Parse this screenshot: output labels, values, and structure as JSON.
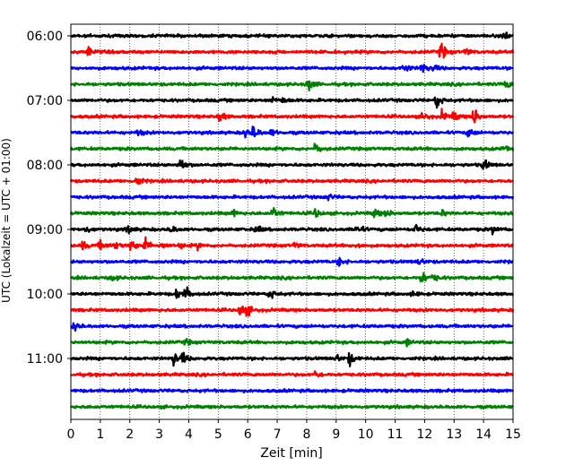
{
  "chart_data": {
    "type": "line",
    "title": "",
    "xlabel": "Zeit  [min]",
    "ylabel": "UTC (Lokalzeit = UTC + 01:00)",
    "xlim": [
      0,
      15
    ],
    "x_ticks": [
      "0",
      "1",
      "2",
      "3",
      "4",
      "5",
      "6",
      "7",
      "8",
      "9",
      "10",
      "11",
      "12",
      "13",
      "14",
      "15"
    ],
    "y_tick_labels": [
      "06:00",
      "07:00",
      "08:00",
      "09:00",
      "10:00",
      "11:00"
    ],
    "grid": "vertical dotted lines at each minute",
    "colors": [
      "#000000",
      "#ff0000",
      "#0000ff",
      "#008000"
    ],
    "traces": [
      {
        "start": "06:00",
        "color": "#000000",
        "events": [
          [
            14.7,
            0.6
          ]
        ]
      },
      {
        "start": "06:15",
        "color": "#ff0000",
        "events": [
          [
            0.6,
            0.5
          ],
          [
            12.55,
            1.0
          ],
          [
            13.4,
            0.4
          ]
        ]
      },
      {
        "start": "06:30",
        "color": "#0000ff",
        "events": [
          [
            11.3,
            0.5
          ],
          [
            11.9,
            0.6
          ],
          [
            12.3,
            0.4
          ]
        ]
      },
      {
        "start": "06:45",
        "color": "#008000",
        "events": [
          [
            8.05,
            0.8
          ],
          [
            14.75,
            0.5
          ]
        ]
      },
      {
        "start": "07:00",
        "color": "#000000",
        "events": [
          [
            6.8,
            0.4
          ],
          [
            7.2,
            0.3
          ],
          [
            12.4,
            0.9
          ]
        ]
      },
      {
        "start": "07:15",
        "color": "#ff0000",
        "events": [
          [
            5.05,
            0.6
          ],
          [
            11.95,
            0.5
          ],
          [
            12.6,
            0.6
          ],
          [
            13.0,
            0.5
          ],
          [
            13.65,
            1.1
          ]
        ]
      },
      {
        "start": "07:30",
        "color": "#0000ff",
        "events": [
          [
            2.3,
            0.3
          ],
          [
            5.9,
            0.5
          ],
          [
            6.2,
            0.7
          ],
          [
            6.8,
            0.4
          ],
          [
            13.5,
            0.6
          ]
        ]
      },
      {
        "start": "07:45",
        "color": "#008000",
        "events": [
          [
            8.3,
            0.6
          ],
          [
            14.7,
            0.3
          ]
        ]
      },
      {
        "start": "08:00",
        "color": "#000000",
        "events": [
          [
            3.7,
            0.9
          ],
          [
            14.0,
            0.7
          ]
        ]
      },
      {
        "start": "08:15",
        "color": "#ff0000",
        "events": [
          [
            2.2,
            0.7
          ]
        ]
      },
      {
        "start": "08:30",
        "color": "#0000ff",
        "events": [
          [
            8.7,
            0.4
          ]
        ]
      },
      {
        "start": "08:45",
        "color": "#008000",
        "events": [
          [
            5.5,
            0.4
          ],
          [
            6.85,
            0.8
          ],
          [
            8.3,
            0.5
          ],
          [
            10.3,
            0.5
          ],
          [
            10.7,
            0.4
          ],
          [
            12.6,
            0.3
          ]
        ]
      },
      {
        "start": "09:00",
        "color": "#000000",
        "events": [
          [
            0.5,
            0.4
          ],
          [
            1.95,
            0.5
          ],
          [
            3.4,
            0.4
          ],
          [
            6.3,
            0.4
          ],
          [
            9.7,
            0.6
          ],
          [
            11.7,
            0.5
          ],
          [
            14.3,
            0.4
          ]
        ]
      },
      {
        "start": "09:15",
        "color": "#ff0000",
        "events": [
          [
            0.4,
            0.4
          ],
          [
            1.0,
            0.6
          ],
          [
            1.5,
            0.4
          ],
          [
            2.0,
            0.7
          ],
          [
            2.5,
            0.8
          ],
          [
            3.1,
            0.4
          ],
          [
            3.7,
            0.3
          ],
          [
            4.3,
            0.3
          ],
          [
            7.6,
            0.3
          ],
          [
            9.7,
            0.3
          ]
        ]
      },
      {
        "start": "09:30",
        "color": "#0000ff",
        "events": [
          [
            9.1,
            0.5
          ],
          [
            11.8,
            0.4
          ]
        ]
      },
      {
        "start": "09:45",
        "color": "#008000",
        "events": [
          [
            1.4,
            0.3
          ],
          [
            11.9,
            0.8
          ],
          [
            12.3,
            0.4
          ]
        ]
      },
      {
        "start": "10:00",
        "color": "#000000",
        "events": [
          [
            3.6,
            0.6
          ],
          [
            3.9,
            0.7
          ],
          [
            6.75,
            0.6
          ],
          [
            11.6,
            0.3
          ]
        ]
      },
      {
        "start": "10:15",
        "color": "#ff0000",
        "events": [
          [
            5.75,
            0.9
          ],
          [
            6.0,
            0.4
          ]
        ]
      },
      {
        "start": "10:30",
        "color": "#0000ff",
        "events": [
          [
            0.1,
            0.6
          ]
        ]
      },
      {
        "start": "10:45",
        "color": "#008000",
        "events": [
          [
            3.9,
            0.3
          ],
          [
            11.4,
            0.3
          ]
        ]
      },
      {
        "start": "11:00",
        "color": "#000000",
        "events": [
          [
            3.5,
            0.8
          ],
          [
            3.8,
            0.6
          ],
          [
            9.0,
            0.4
          ],
          [
            9.45,
            0.7
          ]
        ]
      },
      {
        "start": "11:15",
        "color": "#ff0000",
        "events": [
          [
            8.3,
            0.4
          ]
        ]
      },
      {
        "start": "11:30",
        "color": "#0000ff",
        "events": []
      },
      {
        "start": "11:45",
        "color": "#008000",
        "events": []
      }
    ]
  }
}
